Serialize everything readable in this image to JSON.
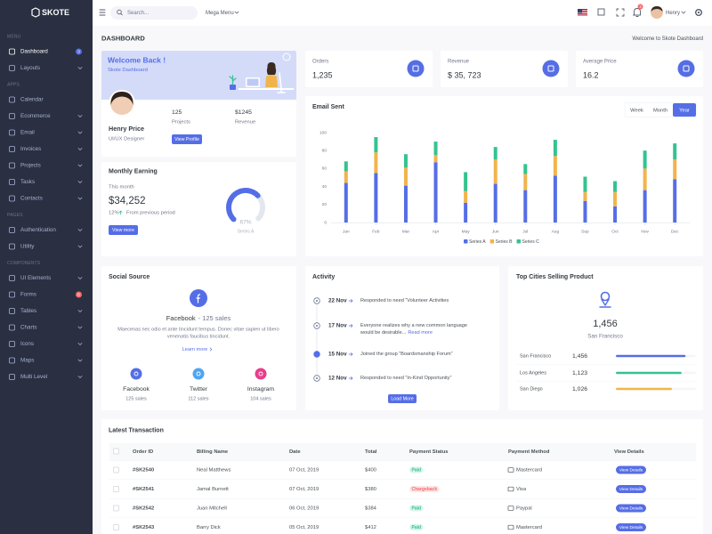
{
  "sidebar": {
    "logo": "SKOTE",
    "sections": [
      {
        "title": "MENU",
        "items": [
          {
            "label": "Dashboard",
            "badge": "3",
            "badge_color": "#556ee6",
            "active": true,
            "submenu": false
          },
          {
            "label": "Layouts",
            "submenu": true
          }
        ]
      },
      {
        "title": "APPS",
        "items": [
          {
            "label": "Calendar",
            "submenu": false
          },
          {
            "label": "Ecommerce",
            "submenu": true
          },
          {
            "label": "Email",
            "submenu": true
          },
          {
            "label": "Invoices",
            "submenu": true
          },
          {
            "label": "Projects",
            "submenu": true
          },
          {
            "label": "Tasks",
            "submenu": true
          },
          {
            "label": "Contacts",
            "submenu": true
          }
        ]
      },
      {
        "title": "PAGES",
        "items": [
          {
            "label": "Authentication",
            "submenu": true
          },
          {
            "label": "Utility",
            "submenu": true
          }
        ]
      },
      {
        "title": "COMPONENTS",
        "items": [
          {
            "label": "UI Elements",
            "submenu": true
          },
          {
            "label": "Forms",
            "badge": "6",
            "badge_color": "#f46a6a",
            "submenu": false
          },
          {
            "label": "Tables",
            "submenu": true
          },
          {
            "label": "Charts",
            "submenu": true
          },
          {
            "label": "Icons",
            "submenu": true
          },
          {
            "label": "Maps",
            "submenu": true
          },
          {
            "label": "Multi Level",
            "submenu": true
          }
        ]
      }
    ]
  },
  "topbar": {
    "search_placeholder": "Search...",
    "mega_menu": "Mega Menu",
    "notification_count": "3",
    "user": "Henry"
  },
  "page": {
    "title": "DASHBOARD",
    "breadcrumb": "Welcome to Skote Dashboard"
  },
  "welcome": {
    "title": "Welcome Back !",
    "subtitle": "Skote Dashboard",
    "name": "Henry Price",
    "role": "UI/UX Designer",
    "stats": [
      {
        "value": "125",
        "label": "Projects"
      },
      {
        "value": "$1245",
        "label": "Revenue"
      }
    ],
    "button": "View Profile"
  },
  "stats": [
    {
      "label": "Orders",
      "value": "1,235"
    },
    {
      "label": "Revenue",
      "value": "$ 35, 723"
    },
    {
      "label": "Average Price",
      "value": "16.2"
    }
  ],
  "email_sent": {
    "type": "bar",
    "stacked": true,
    "title": "Email Sent",
    "periods": [
      "Week",
      "Month",
      "Year"
    ],
    "active_period": 2,
    "categories": [
      "Jan",
      "Feb",
      "Mar",
      "Apr",
      "May",
      "Jun",
      "Jul",
      "Aug",
      "Sep",
      "Oct",
      "Nov",
      "Dec"
    ],
    "series": [
      {
        "name": "Series A",
        "color": "#556ee6",
        "values": [
          44,
          55,
          41,
          67,
          22,
          43,
          36,
          52,
          24,
          18,
          36,
          48
        ]
      },
      {
        "name": "Series B",
        "color": "#f1b44c",
        "values": [
          13,
          23,
          20,
          8,
          13,
          27,
          18,
          22,
          10,
          16,
          24,
          22
        ]
      },
      {
        "name": "Series C",
        "color": "#34c38f",
        "values": [
          11,
          17,
          15,
          15,
          21,
          14,
          11,
          18,
          17,
          12,
          20,
          18
        ]
      }
    ],
    "ylim": [
      0,
      100
    ],
    "yticks": [
      0,
      20,
      40,
      60,
      80,
      100
    ],
    "grid": false
  },
  "monthly_earning": {
    "title": "Monthly Earning",
    "period": "This month",
    "amount": "$34,252",
    "change": "12%",
    "change_note": "From previous period",
    "button": "View more",
    "gauge": {
      "type": "radialBar",
      "values": [
        67
      ],
      "value_labels": [
        "67%"
      ],
      "series_name": "Series A",
      "color": "#556ee6"
    }
  },
  "social_source": {
    "title": "Social Source",
    "source": "Facebook",
    "sales": "- 125 sales",
    "description": [
      "Maecenas nec odio et ante tincidunt tempus. Donec vitae sapien ut libero",
      "venenatis faucibus tincidunt."
    ],
    "link": "Learn more",
    "platforms": [
      {
        "name": "Facebook",
        "sales": "125 sales",
        "color": "#556ee6"
      },
      {
        "name": "Twitter",
        "sales": "112 sales",
        "color": "#50a5f1"
      },
      {
        "name": "Instagram",
        "sales": "104 sales",
        "color": "#e83e8c"
      }
    ]
  },
  "activity": {
    "title": "Activity",
    "items": [
      {
        "date": "22 Nov",
        "text": [
          "Responded to need “Volunteer Activities"
        ]
      },
      {
        "date": "17 Nov",
        "text": [
          "Everyone realizes why a new common language",
          "would be desirable..."
        ],
        "link": "Read more"
      },
      {
        "date": "15 Nov",
        "text": [
          "Joined the group “Boardsmanship Forum”"
        ],
        "highlight": true
      },
      {
        "date": "12 Nov",
        "text": [
          "Responded to need “In-Kind Opportunity”"
        ]
      }
    ],
    "button": "Load More"
  },
  "top_cities": {
    "title": "Top Cities Selling Product",
    "total": "1,456",
    "total_city": "San Francisco",
    "cities": [
      {
        "name": "San Francisco",
        "value": "1,456",
        "progress": 87,
        "color": "#556ee6"
      },
      {
        "name": "Los Angeles",
        "value": "1,123",
        "progress": 82,
        "color": "#34c38f"
      },
      {
        "name": "San Diego",
        "value": "1,026",
        "progress": 70,
        "color": "#f1b44c"
      }
    ]
  },
  "transactions": {
    "title": "Latest Transaction",
    "columns": [
      "Order ID",
      "Billing Name",
      "Date",
      "Total",
      "Payment Status",
      "Payment Method",
      "View Details"
    ],
    "rows": [
      {
        "order_id": "#SK2540",
        "name": "Neal Matthews",
        "date": "07 Oct, 2019",
        "total": "$400",
        "status": "Paid",
        "status_color": "#34c38f",
        "method": "Mastercard",
        "action": "View Details"
      },
      {
        "order_id": "#SK2541",
        "name": "Jamal Burnett",
        "date": "07 Oct, 2019",
        "total": "$380",
        "status": "Chargeback",
        "status_color": "#f46a6a",
        "method": "Visa",
        "action": "View Details"
      },
      {
        "order_id": "#SK2542",
        "name": "Juan Mitchell",
        "date": "06 Oct, 2019",
        "total": "$384",
        "status": "Paid",
        "status_color": "#34c38f",
        "method": "Paypal",
        "action": "View Details"
      },
      {
        "order_id": "#SK2543",
        "name": "Barry Dick",
        "date": "05 Oct, 2019",
        "total": "$412",
        "status": "Paid",
        "status_color": "#34c38f",
        "method": "Mastercard",
        "action": "View Details"
      }
    ]
  }
}
